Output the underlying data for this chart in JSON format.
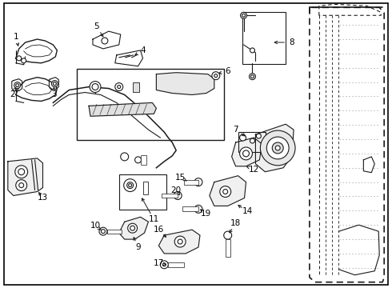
{
  "background_color": "#ffffff",
  "border_color": "#000000",
  "fig_width": 4.9,
  "fig_height": 3.6,
  "dpi": 100,
  "line_color": "#1a1a1a",
  "text_color": "#000000",
  "label_fontsize": 7.5
}
